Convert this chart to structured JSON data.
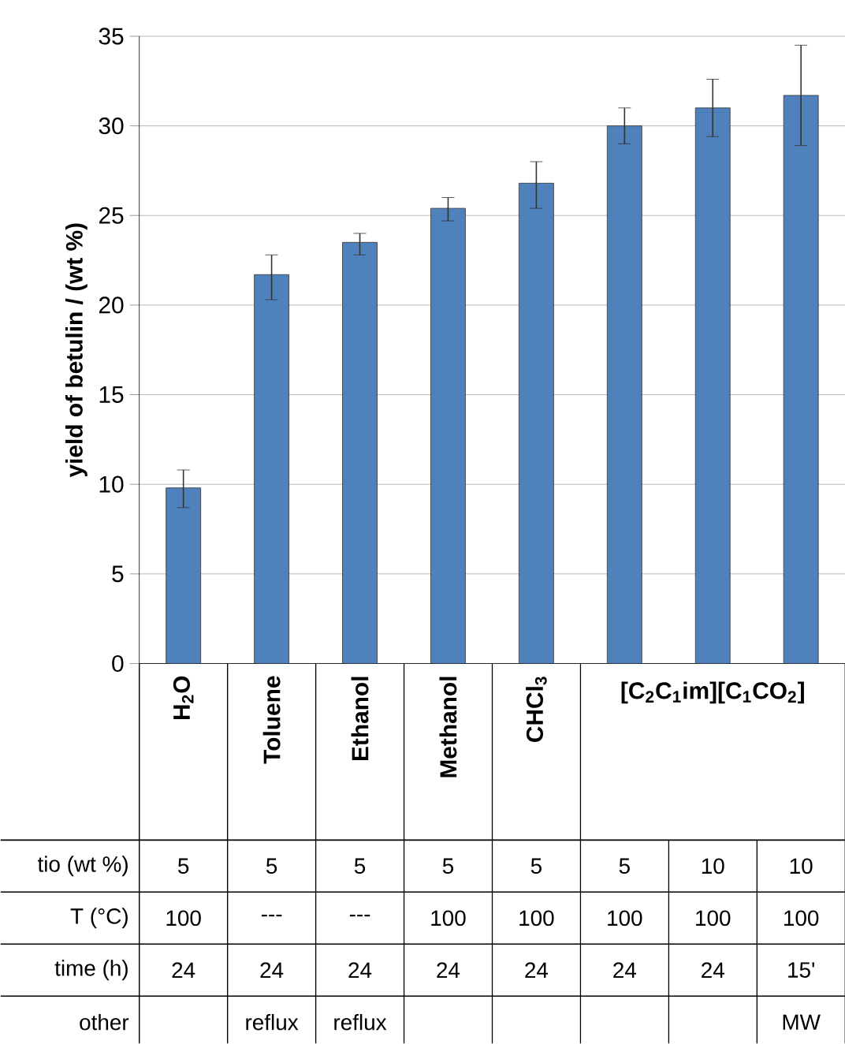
{
  "chart_data": {
    "type": "bar",
    "ylabel": "yield of betulin / (wt %)",
    "categories": [
      "H$_{2}$O",
      "Toluene",
      "Ethanol",
      "Methanol",
      "CHCl$_{3}$",
      null,
      null,
      null
    ],
    "values": [
      9.8,
      21.7,
      23.5,
      25.4,
      26.8,
      30.0,
      31.0,
      31.7
    ],
    "errors": [
      [
        8.7,
        10.8
      ],
      [
        20.3,
        22.8
      ],
      [
        22.8,
        24.0
      ],
      [
        24.7,
        26.0
      ],
      [
        25.4,
        28.0
      ],
      [
        29.0,
        31.0
      ],
      [
        29.4,
        32.6
      ],
      [
        28.9,
        34.5
      ]
    ],
    "color": "#4f81bd",
    "ylim": [
      0,
      35
    ],
    "yticks": [
      0,
      5,
      10,
      15,
      20,
      25,
      30,
      35
    ],
    "grid": "y",
    "annotations": [
      "tio (wt %)",
      "5",
      "5",
      "5",
      "5",
      "5",
      "5",
      "10",
      "10",
      "T (°C)",
      "100",
      "---",
      "---",
      "100",
      "100",
      "100",
      "100",
      "100",
      "time (h)",
      "24",
      "24",
      "24",
      "24",
      "24",
      "24",
      "24",
      "15'",
      "other",
      null,
      "reflux",
      "reflux",
      null,
      null,
      null,
      null,
      "MW",
      "[C$_{2}$C$_{1}$im][C$_{1}$CO$_{2}$]"
    ]
  }
}
